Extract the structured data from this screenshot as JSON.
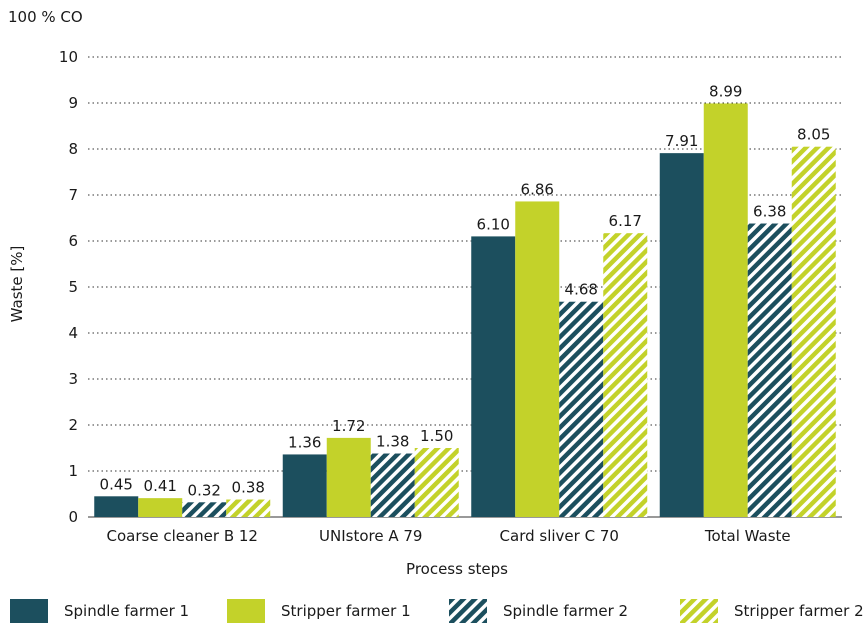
{
  "chart_data": {
    "type": "bar",
    "unit_note": "100 % CO",
    "ylabel": "Waste [%]",
    "xlabel": "Process steps",
    "ylim": [
      0,
      10
    ],
    "yticks": [
      0,
      1,
      2,
      3,
      4,
      5,
      6,
      7,
      8,
      9,
      10
    ],
    "grid": "horizontal dotted",
    "legend_position": "bottom",
    "categories": [
      "Coarse cleaner B 12",
      "UNIstore A 79",
      "Card sliver C 70",
      "Total Waste"
    ],
    "series": [
      {
        "name": "Spindle farmer 1",
        "color": "#1c4f5e",
        "pattern": "solid",
        "values": [
          0.45,
          1.36,
          6.1,
          7.91
        ],
        "labels": [
          "0.45",
          "1.36",
          "6.10",
          "7.91"
        ]
      },
      {
        "name": "Stripper farmer 1",
        "color": "#c3d22a",
        "pattern": "solid",
        "values": [
          0.41,
          1.72,
          6.86,
          8.99
        ],
        "labels": [
          "0.41",
          "1.72",
          "6.86",
          "8.99"
        ]
      },
      {
        "name": "Spindle farmer 2",
        "color": "#1c4f5e",
        "pattern": "hatched",
        "values": [
          0.32,
          1.38,
          4.68,
          6.38
        ],
        "labels": [
          "0.32",
          "1.38",
          "4.68",
          "6.38"
        ]
      },
      {
        "name": "Stripper farmer 2",
        "color": "#c3d22a",
        "pattern": "hatched",
        "values": [
          0.38,
          1.5,
          6.17,
          8.05
        ],
        "labels": [
          "0.38",
          "1.50",
          "6.17",
          "8.05"
        ]
      }
    ]
  }
}
